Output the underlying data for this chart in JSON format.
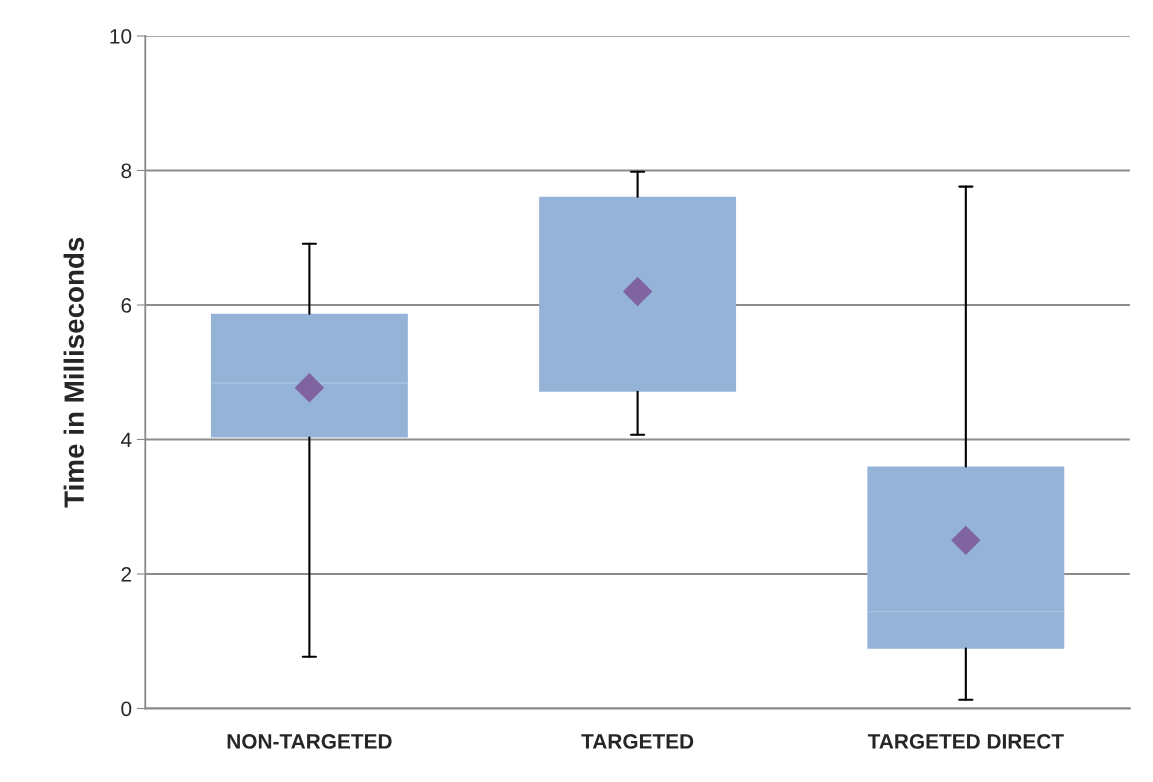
{
  "chart_data": {
    "type": "box",
    "ylabel": "Time in Milliseconds",
    "categories": [
      "NON-TARGETED",
      "TARGETED",
      "TARGETED DIRECT"
    ],
    "boxes": [
      {
        "low": 0.77,
        "q1": 4.03,
        "median": 4.84,
        "q3": 5.87,
        "high": 6.91,
        "mean": 4.77
      },
      {
        "low": 4.07,
        "q1": 4.71,
        "median": null,
        "q3": 7.61,
        "high": 7.98,
        "mean": 6.2
      },
      {
        "low": 0.13,
        "q1": 0.89,
        "median": 1.44,
        "q3": 3.6,
        "high": 7.76,
        "mean": 2.5
      }
    ],
    "color": "#95b3d7",
    "ylim": [
      0,
      10
    ],
    "yticks": [
      0,
      2,
      4,
      6,
      8,
      10
    ],
    "grid": "y",
    "marker": "diamond"
  }
}
